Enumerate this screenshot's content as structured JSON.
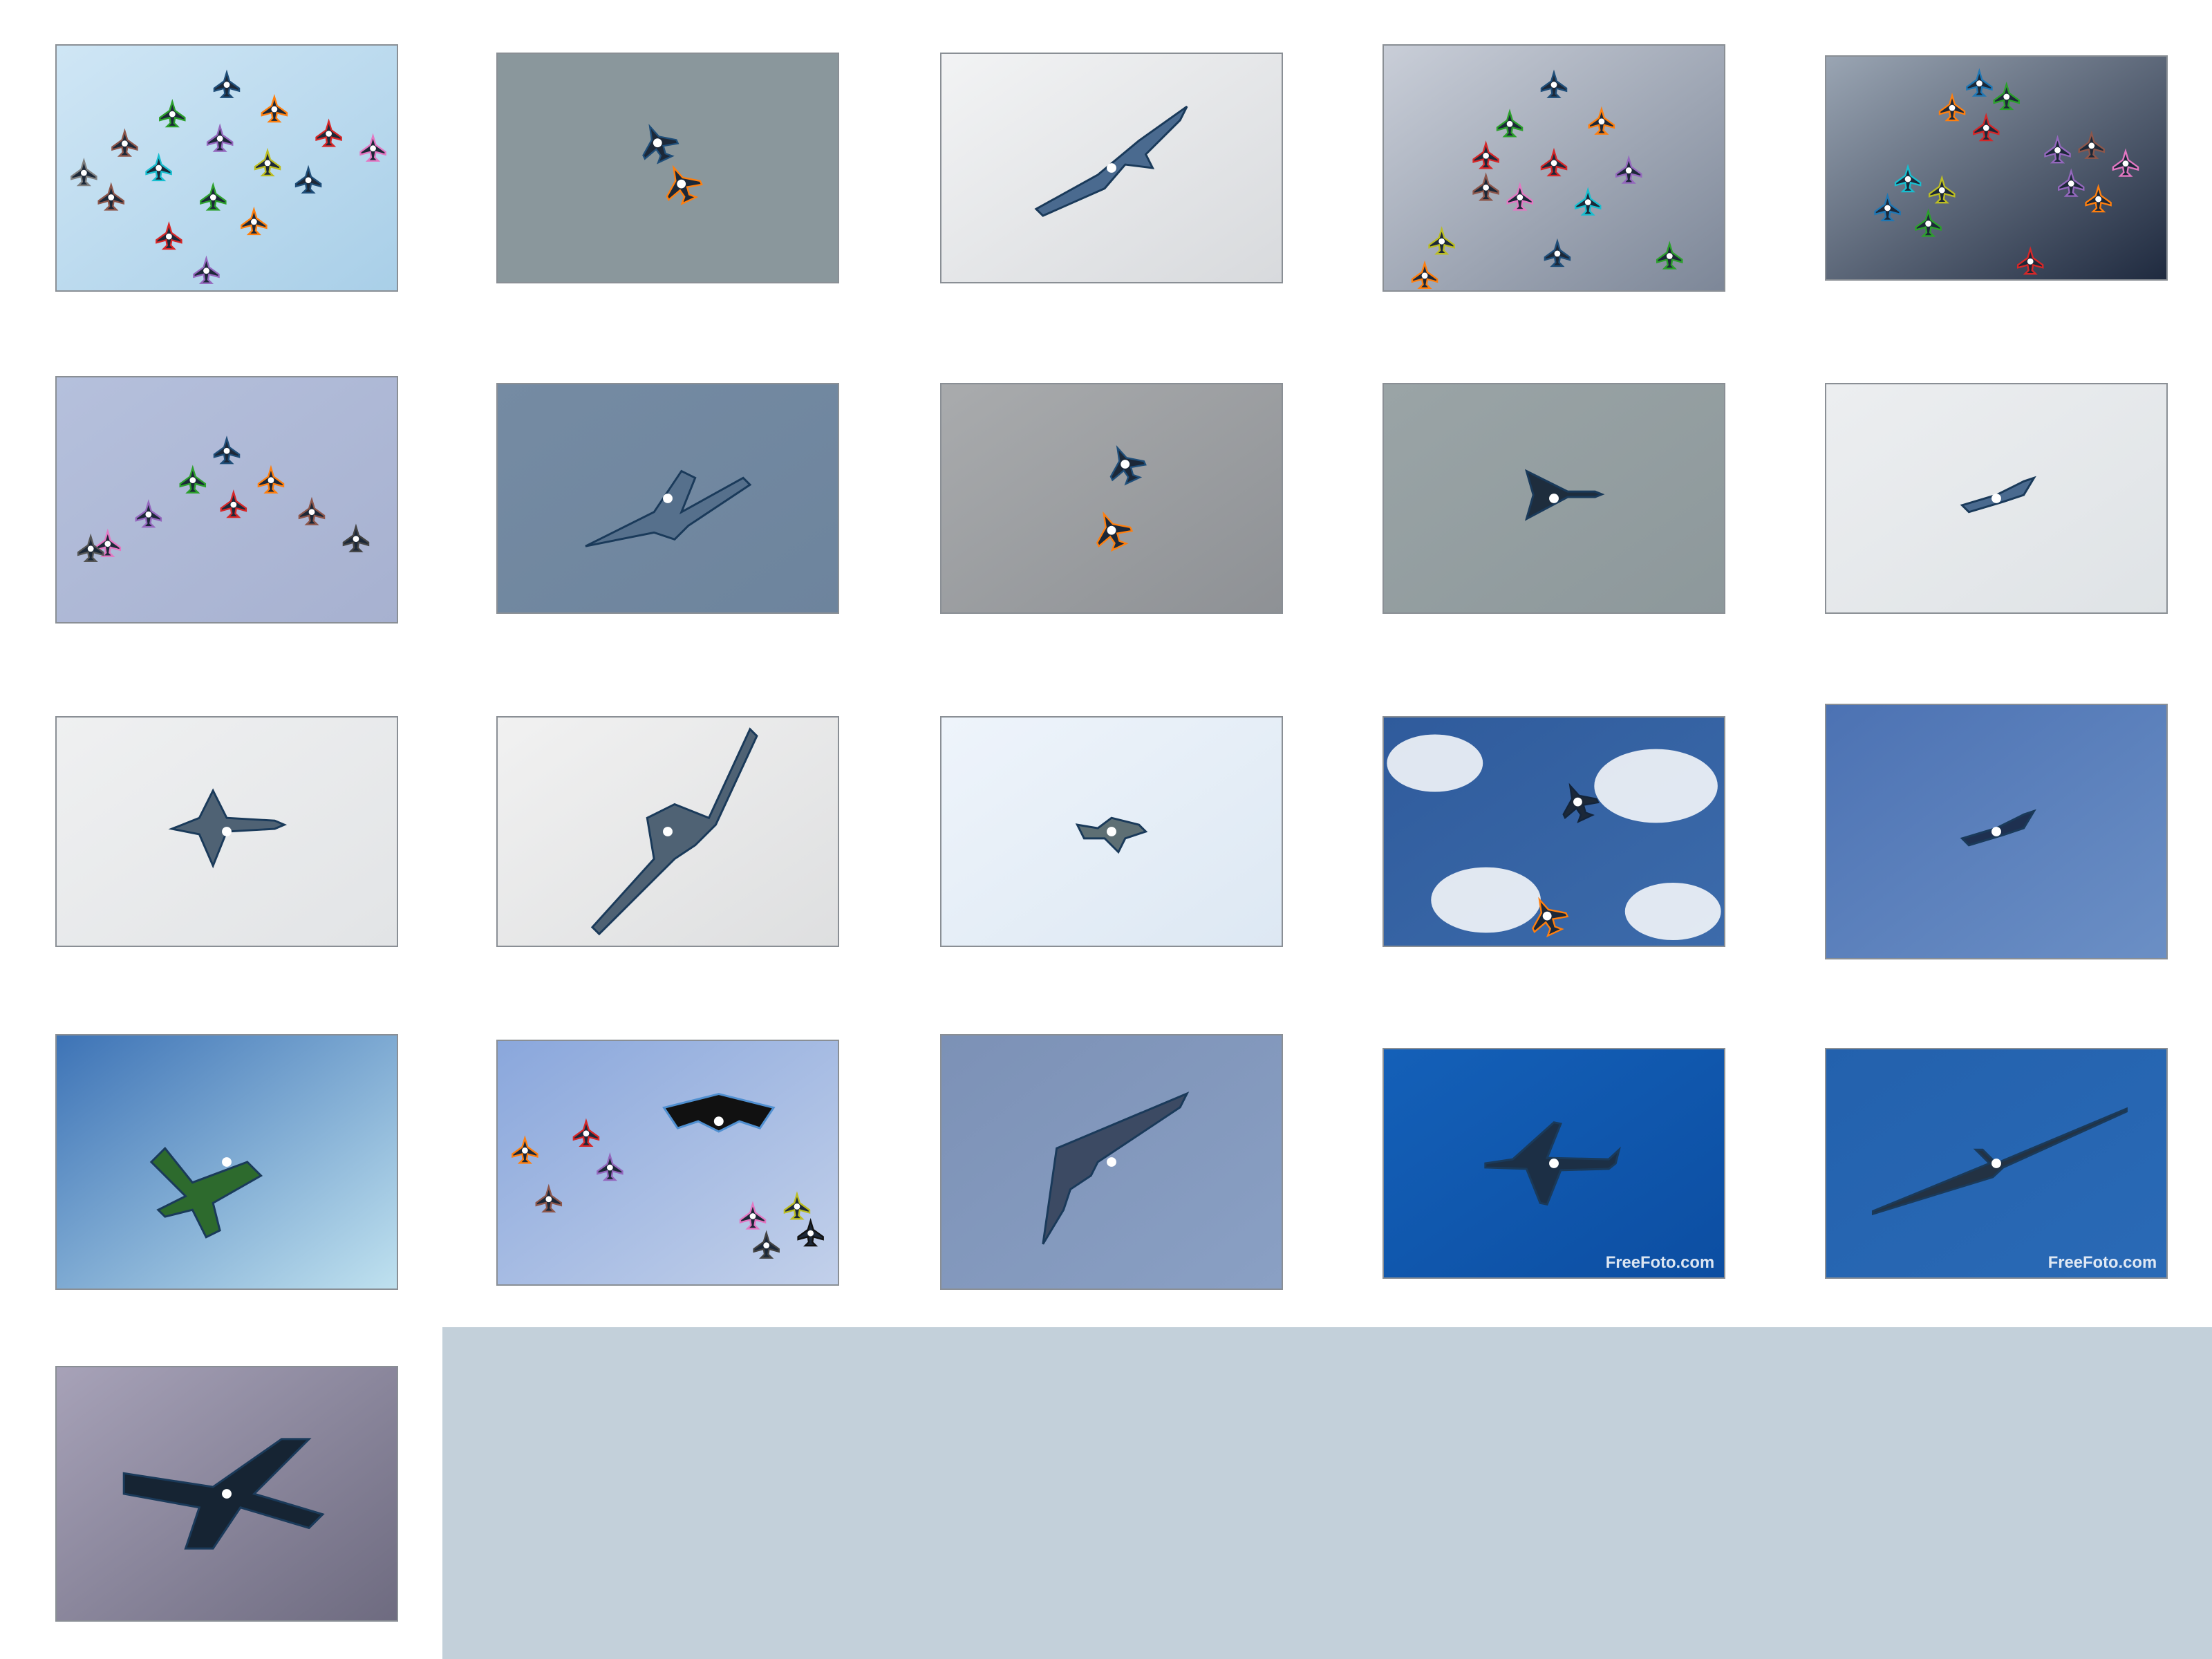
{
  "page": {
    "background": "#ffffff",
    "blank_area_color": "#c3d0da"
  },
  "thumbnails": [
    {
      "id": "formation-colored-sky",
      "bg": [
        "#cfe6f5",
        "#a9cfe8"
      ],
      "kind": "formation",
      "count": 16,
      "colors": [
        "#1f4e79",
        "#2ca02c",
        "#ff7f0e",
        "#d62728",
        "#9467bd",
        "#8c564b",
        "#e377c2",
        "#17becf",
        "#bcbd22",
        "#7f7f7f"
      ]
    },
    {
      "id": "pair-grey",
      "bg": [
        "#8a979c",
        "#8a979c"
      ],
      "kind": "pair",
      "colors": [
        "#1f4e79",
        "#ff7f0e"
      ]
    },
    {
      "id": "jet-tilted-cloud",
      "bg": [
        "#f2f3f4",
        "#d8dadd"
      ],
      "kind": "single",
      "shape": "jet",
      "colors": [
        "#4a6a8f"
      ]
    },
    {
      "id": "formation-dark-cloud",
      "bg": [
        "#c9ced8",
        "#7d8798"
      ],
      "kind": "formation",
      "count": 13,
      "colors": [
        "#1f4e79",
        "#2ca02c",
        "#ff7f0e",
        "#d62728",
        "#9467bd",
        "#8c564b",
        "#e377c2",
        "#17becf",
        "#bcbd22"
      ]
    },
    {
      "id": "formation-night-sun",
      "bg": [
        "#9aa5b3",
        "#1f2a3f"
      ],
      "kind": "formation",
      "count": 14,
      "colors": [
        "#1f77b4",
        "#2ca02c",
        "#ff7f0e",
        "#d62728",
        "#9467bd",
        "#8c564b",
        "#e377c2",
        "#17becf",
        "#bcbd22"
      ]
    },
    {
      "id": "arrow-formation",
      "bg": [
        "#b5c0dc",
        "#a7b1d0"
      ],
      "kind": "arrow",
      "count": 9,
      "colors": [
        "#1f4e79",
        "#2ca02c",
        "#ff7f0e",
        "#d62728",
        "#9467bd",
        "#8c564b",
        "#e377c2",
        "#444444",
        "#555555"
      ]
    },
    {
      "id": "transport-blue",
      "bg": [
        "#758ba3",
        "#6d849d"
      ],
      "kind": "single",
      "shape": "transport",
      "colors": [
        "#56708c"
      ]
    },
    {
      "id": "pair-cloudy",
      "bg": [
        "#a9abad",
        "#8e9195"
      ],
      "kind": "pair",
      "colors": [
        "#1f4e79",
        "#ff7f0e"
      ]
    },
    {
      "id": "delta-grey",
      "bg": [
        "#9aa4a6",
        "#8d989b"
      ],
      "kind": "single",
      "shape": "delta",
      "colors": [
        "#1e2d3d"
      ]
    },
    {
      "id": "jet-white",
      "bg": [
        "#eceef0",
        "#dfe3e6"
      ],
      "kind": "single",
      "shape": "jet-small",
      "colors": [
        "#4a6a8f"
      ]
    },
    {
      "id": "typhoon-white",
      "bg": [
        "#eff0f1",
        "#e2e4e6"
      ],
      "kind": "single",
      "shape": "typhoon",
      "colors": [
        "#4f6274"
      ]
    },
    {
      "id": "atlas-white",
      "bg": [
        "#f1f1f1",
        "#dedfe0"
      ],
      "kind": "single",
      "shape": "atlas",
      "colors": [
        "#4f6274"
      ]
    },
    {
      "id": "spitfire-pale",
      "bg": [
        "#eef4fb",
        "#dde8f3"
      ],
      "kind": "single",
      "shape": "prop",
      "colors": [
        "#5e6f74"
      ]
    },
    {
      "id": "airliner-clouds",
      "bg": [
        "#2f5b9c",
        "#3c6bab"
      ],
      "kind": "pair",
      "colors": [
        "#13243a",
        "#ff7f0e"
      ],
      "clouds": true
    },
    {
      "id": "jet-blue-high",
      "bg": [
        "#4c72b3",
        "#6b8fc5"
      ],
      "kind": "single",
      "shape": "jet-small",
      "colors": [
        "#1e3050"
      ]
    },
    {
      "id": "airliner-sunburst",
      "bg": [
        "#3d73b6",
        "#bfe1ef"
      ],
      "kind": "single",
      "shape": "airliner-green",
      "colors": [
        "#2d6a2d"
      ]
    },
    {
      "id": "stealth-formation",
      "bg": [
        "#8aa7dc",
        "#c2d0ea"
      ],
      "kind": "formation-stealth",
      "count": 9,
      "colors": [
        "#2ca02c",
        "#ff7f0e",
        "#d62728",
        "#9467bd",
        "#8c564b",
        "#e377c2",
        "#bcbd22",
        "#444444",
        "#111111"
      ]
    },
    {
      "id": "stealth-single",
      "bg": [
        "#7c91b6",
        "#8aa0c4"
      ],
      "kind": "single",
      "shape": "stealth",
      "colors": [
        "#3c4a63"
      ]
    },
    {
      "id": "bizjet-freefoto",
      "bg": [
        "#1460b8",
        "#0c4ea2"
      ],
      "kind": "single",
      "shape": "bizjet",
      "colors": [
        "#1c2f45"
      ],
      "watermark": "FreeFoto.com"
    },
    {
      "id": "glider-freefoto",
      "bg": [
        "#2361ad",
        "#2a6ab6"
      ],
      "kind": "single",
      "shape": "glider",
      "colors": [
        "#233243"
      ],
      "watermark": "FreeFoto.com"
    },
    {
      "id": "jumbo-dusk",
      "bg": [
        "#a7a2b8",
        "#6e6b80"
      ],
      "kind": "single",
      "shape": "jumbo",
      "colors": [
        "#162433"
      ]
    }
  ]
}
